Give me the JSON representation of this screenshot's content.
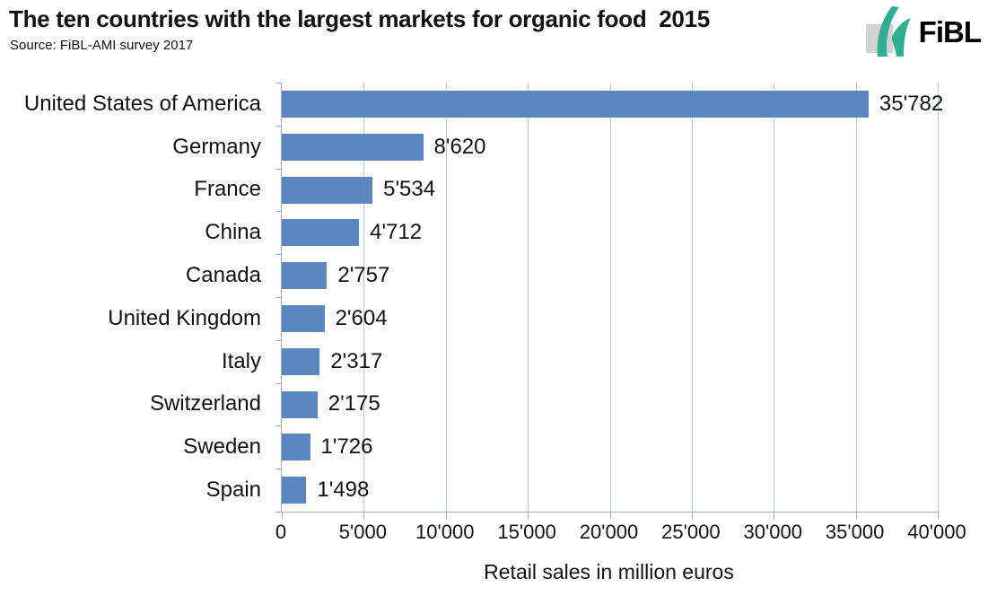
{
  "header": {
    "title": "The ten countries with the largest markets for organic food  2015",
    "source": "Source: FiBL-AMI survey 2017",
    "logo_text": "FiBL"
  },
  "chart_data": {
    "type": "bar",
    "orientation": "horizontal",
    "title": "The ten countries with the largest markets for organic food 2015",
    "categories": [
      "United States of America",
      "Germany",
      "France",
      "China",
      "Canada",
      "United Kingdom",
      "Italy",
      "Switzerland",
      "Sweden",
      "Spain"
    ],
    "values": [
      35782,
      8620,
      5534,
      4712,
      2757,
      2604,
      2317,
      2175,
      1726,
      1498
    ],
    "value_labels": [
      "35'782",
      "8'620",
      "5'534",
      "4'712",
      "2'757",
      "2'604",
      "2'317",
      "2'175",
      "1'726",
      "1'498"
    ],
    "xlabel": "Retail sales in million euros",
    "xlim": [
      0,
      40000
    ],
    "xticks": [
      0,
      5000,
      10000,
      15000,
      20000,
      25000,
      30000,
      35000,
      40000
    ],
    "xtick_labels": [
      "0",
      "5'000",
      "10'000",
      "15'000",
      "20'000",
      "25'000",
      "30'000",
      "35'000",
      "40'000"
    ],
    "grid": true,
    "legend": false,
    "bar_color": "#5b87bf",
    "gridline_color": "#b0c7e1",
    "axis_color": "#9db0c7",
    "logo_teal": "#2fae93",
    "logo_gray": "#d2d2d2"
  }
}
